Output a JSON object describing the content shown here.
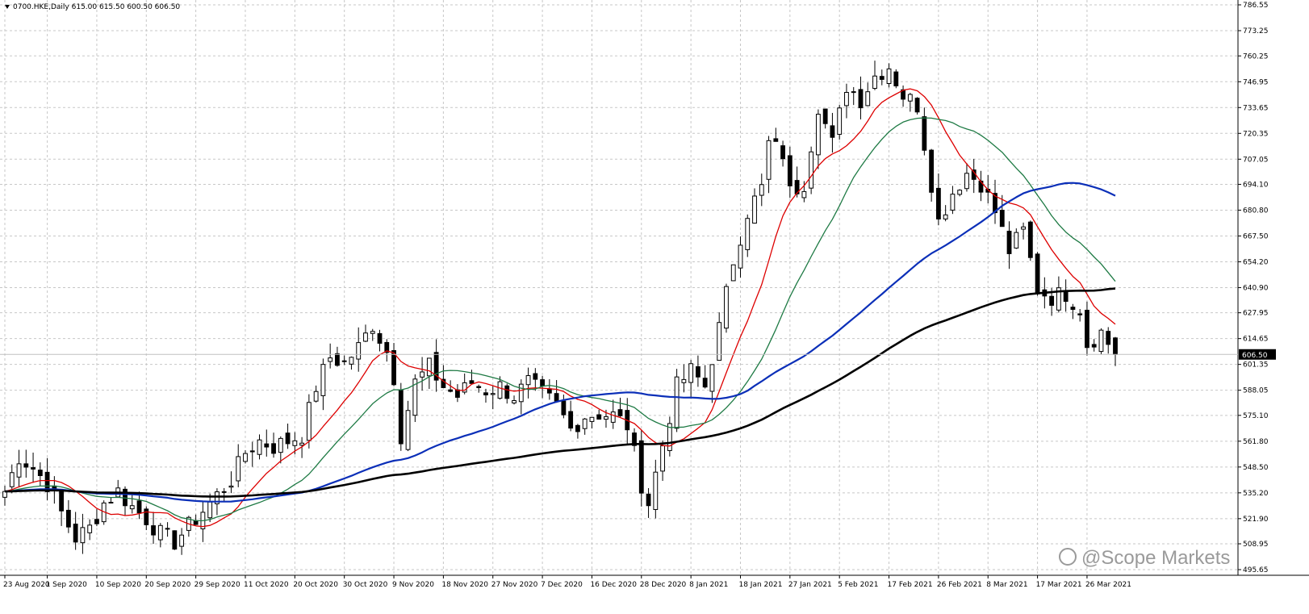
{
  "chart_title": "0700.HKE,Daily  615.00 615.50 600.50 606.50",
  "watermark": "@Scope Markets",
  "current_price_label": "606.50",
  "chart_data": {
    "type": "candlestick",
    "symbol": "0700.HKE",
    "timeframe": "Daily",
    "last_bar": {
      "open": 615.0,
      "high": 615.5,
      "low": 600.5,
      "close": 606.5
    },
    "ylim": [
      495.65,
      786.55
    ],
    "y_ticks": [
      "786.55",
      "773.25",
      "760.25",
      "746.95",
      "733.65",
      "720.35",
      "707.05",
      "694.10",
      "680.80",
      "667.50",
      "654.20",
      "640.90",
      "627.95",
      "614.65",
      "601.35",
      "588.05",
      "575.10",
      "561.80",
      "548.50",
      "535.20",
      "521.90",
      "508.95",
      "495.65"
    ],
    "x_ticks": [
      {
        "i": 0,
        "label": "23 Aug 2020"
      },
      {
        "i": 6,
        "label": "1 Sep 2020"
      },
      {
        "i": 13,
        "label": "10 Sep 2020"
      },
      {
        "i": 20,
        "label": "20 Sep 2020"
      },
      {
        "i": 27,
        "label": "29 Sep 2020"
      },
      {
        "i": 34,
        "label": "11 Oct 2020"
      },
      {
        "i": 41,
        "label": "20 Oct 2020"
      },
      {
        "i": 48,
        "label": "30 Oct 2020"
      },
      {
        "i": 55,
        "label": "9 Nov 2020"
      },
      {
        "i": 62,
        "label": "18 Nov 2020"
      },
      {
        "i": 69,
        "label": "27 Nov 2020"
      },
      {
        "i": 76,
        "label": "7 Dec 2020"
      },
      {
        "i": 83,
        "label": "16 Dec 2020"
      },
      {
        "i": 90,
        "label": "28 Dec 2020"
      },
      {
        "i": 97,
        "label": "8 Jan 2021"
      },
      {
        "i": 104,
        "label": "18 Jan 2021"
      },
      {
        "i": 111,
        "label": "27 Jan 2021"
      },
      {
        "i": 118,
        "label": "5 Feb 2021"
      },
      {
        "i": 125,
        "label": "17 Feb 2021"
      },
      {
        "i": 132,
        "label": "26 Feb 2021"
      },
      {
        "i": 139,
        "label": "8 Mar 2021"
      },
      {
        "i": 146,
        "label": "17 Mar 2021"
      },
      {
        "i": 153,
        "label": "26 Mar 2021"
      }
    ],
    "close_anchors": [
      [
        0,
        536
      ],
      [
        2,
        554
      ],
      [
        4,
        548
      ],
      [
        6,
        540
      ],
      [
        8,
        525
      ],
      [
        10,
        512
      ],
      [
        12,
        517
      ],
      [
        14,
        530
      ],
      [
        16,
        536
      ],
      [
        18,
        528
      ],
      [
        20,
        522
      ],
      [
        22,
        514
      ],
      [
        24,
        510
      ],
      [
        26,
        518
      ],
      [
        28,
        526
      ],
      [
        30,
        534
      ],
      [
        32,
        542
      ],
      [
        34,
        556
      ],
      [
        36,
        562
      ],
      [
        38,
        559
      ],
      [
        40,
        562
      ],
      [
        42,
        565
      ],
      [
        44,
        590
      ],
      [
        46,
        605
      ],
      [
        48,
        602
      ],
      [
        50,
        610
      ],
      [
        52,
        622
      ],
      [
        54,
        608
      ],
      [
        55,
        595
      ],
      [
        56,
        565
      ],
      [
        58,
        592
      ],
      [
        60,
        600
      ],
      [
        62,
        590
      ],
      [
        64,
        585
      ],
      [
        66,
        592
      ],
      [
        68,
        588
      ],
      [
        70,
        590
      ],
      [
        72,
        585
      ],
      [
        74,
        592
      ],
      [
        76,
        586
      ],
      [
        78,
        580
      ],
      [
        80,
        568
      ],
      [
        82,
        575
      ],
      [
        84,
        576
      ],
      [
        86,
        575
      ],
      [
        88,
        570
      ],
      [
        89,
        555
      ],
      [
        90,
        540
      ],
      [
        91,
        530
      ],
      [
        93,
        560
      ],
      [
        95,
        590
      ],
      [
        97,
        598
      ],
      [
        99,
        590
      ],
      [
        101,
        620
      ],
      [
        103,
        655
      ],
      [
        105,
        680
      ],
      [
        107,
        692
      ],
      [
        108,
        715
      ],
      [
        110,
        710
      ],
      [
        111,
        690
      ],
      [
        113,
        695
      ],
      [
        115,
        735
      ],
      [
        117,
        715
      ],
      [
        119,
        745
      ],
      [
        121,
        738
      ],
      [
        123,
        750
      ],
      [
        125,
        755
      ],
      [
        127,
        740
      ],
      [
        129,
        735
      ],
      [
        131,
        695
      ],
      [
        132,
        675
      ],
      [
        134,
        690
      ],
      [
        136,
        700
      ],
      [
        138,
        695
      ],
      [
        140,
        680
      ],
      [
        142,
        660
      ],
      [
        144,
        670
      ],
      [
        146,
        640
      ],
      [
        148,
        636
      ],
      [
        150,
        638
      ],
      [
        152,
        630
      ],
      [
        153,
        612
      ],
      [
        155,
        618
      ],
      [
        157,
        606.5
      ]
    ],
    "series": [
      {
        "name": "MA 10",
        "color": "#dd0000",
        "stroke_width": 1.3
      },
      {
        "name": "MA 20",
        "color": "#1e7a44",
        "stroke_width": 1.3
      },
      {
        "name": "MA 50",
        "color": "#0b2fb8",
        "stroke_width": 2.2
      },
      {
        "name": "MA 100",
        "color": "#000000",
        "stroke_width": 2.6
      }
    ],
    "colors": {
      "candle": "#000000",
      "grid": "#c7c7c7",
      "background": "#ffffff"
    },
    "grid": true
  }
}
